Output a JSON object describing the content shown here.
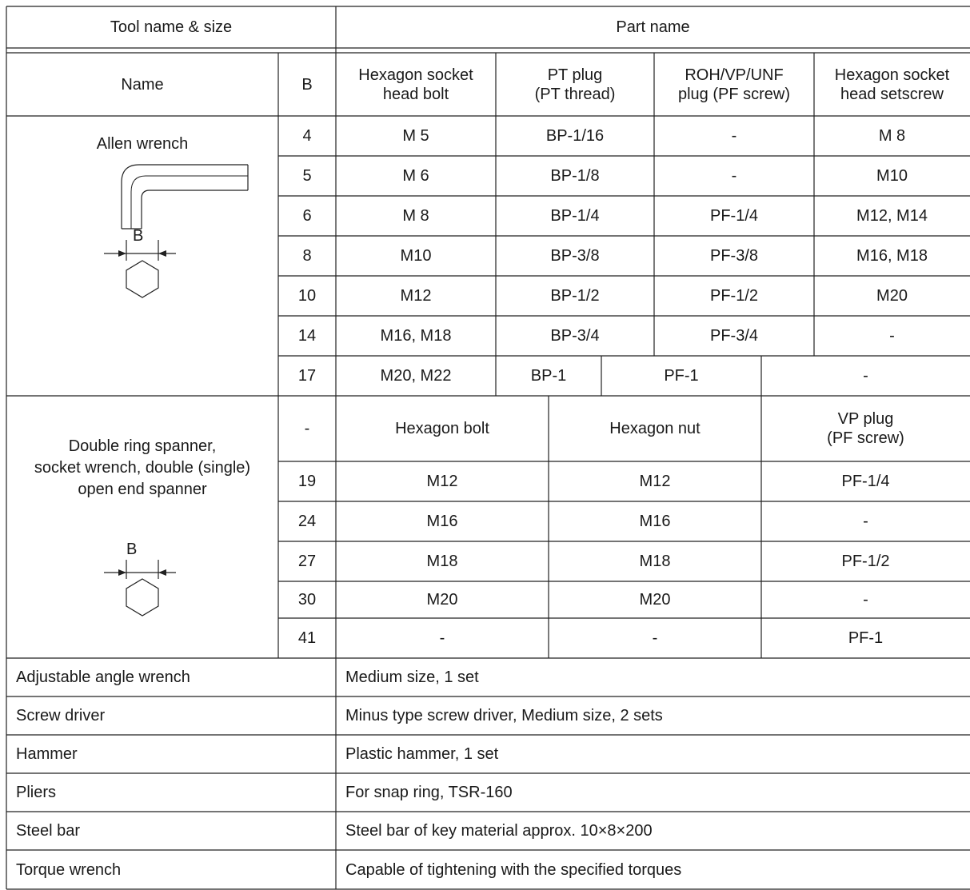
{
  "header": {
    "tool_name_size": "Tool name & size",
    "part_name": "Part name"
  },
  "allen_header": {
    "name": "Name",
    "b": "B",
    "col1": "Hexagon socket\nhead bolt",
    "col2": "PT plug\n(PT thread)",
    "col3": "ROH/VP/UNF\nplug (PF screw)",
    "col4": "Hexagon socket\nhead setscrew"
  },
  "allen": {
    "name": "Allen wrench",
    "diagram_label": "B",
    "rows": [
      {
        "b": "4",
        "c1": "M  5",
        "c2": "BP-1/16",
        "c3": "-",
        "c4": "M  8"
      },
      {
        "b": "5",
        "c1": "M  6",
        "c2": "BP-1/8",
        "c3": "-",
        "c4": "M10"
      },
      {
        "b": "6",
        "c1": "M  8",
        "c2": "BP-1/4",
        "c3": "PF-1/4",
        "c4": "M12, M14"
      },
      {
        "b": "8",
        "c1": "M10",
        "c2": "BP-3/8",
        "c3": "PF-3/8",
        "c4": "M16, M18"
      },
      {
        "b": "10",
        "c1": "M12",
        "c2": "BP-1/2",
        "c3": "PF-1/2",
        "c4": "M20"
      },
      {
        "b": "14",
        "c1": "M16, M18",
        "c2": "BP-3/4",
        "c3": "PF-3/4",
        "c4": "-"
      },
      {
        "b": "17",
        "c1": "M20, M22",
        "c2": "BP-1",
        "c3": "PF-1",
        "c4": "-"
      }
    ]
  },
  "spanner": {
    "name": "Double ring spanner,\nsocket wrench, double (single)\nopen end spanner",
    "diagram_label": "B",
    "header": {
      "b": "-",
      "c1": "Hexagon bolt",
      "c2": "Hexagon nut",
      "c3": "VP plug\n(PF screw)"
    },
    "rows": [
      {
        "b": "19",
        "c1": "M12",
        "c2": "M12",
        "c3": "PF-1/4"
      },
      {
        "b": "24",
        "c1": "M16",
        "c2": "M16",
        "c3": "-"
      },
      {
        "b": "27",
        "c1": "M18",
        "c2": "M18",
        "c3": "PF-1/2"
      },
      {
        "b": "30",
        "c1": "M20",
        "c2": "M20",
        "c3": "-"
      },
      {
        "b": "41",
        "c1": "-",
        "c2": "-",
        "c3": "PF-1"
      }
    ]
  },
  "others": [
    {
      "tool": "Adjustable angle wrench",
      "part": "Medium size, 1 set"
    },
    {
      "tool": "Screw driver",
      "part": "Minus type screw driver, Medium size, 2 sets"
    },
    {
      "tool": "Hammer",
      "part": "Plastic hammer, 1 set"
    },
    {
      "tool": "Pliers",
      "part": "For snap ring, TSR-160"
    },
    {
      "tool": "Steel bar",
      "part": "Steel bar of key material approx. 10×8×200"
    },
    {
      "tool": "Torque wrench",
      "part": "Capable of tightening with the specified torques"
    }
  ]
}
